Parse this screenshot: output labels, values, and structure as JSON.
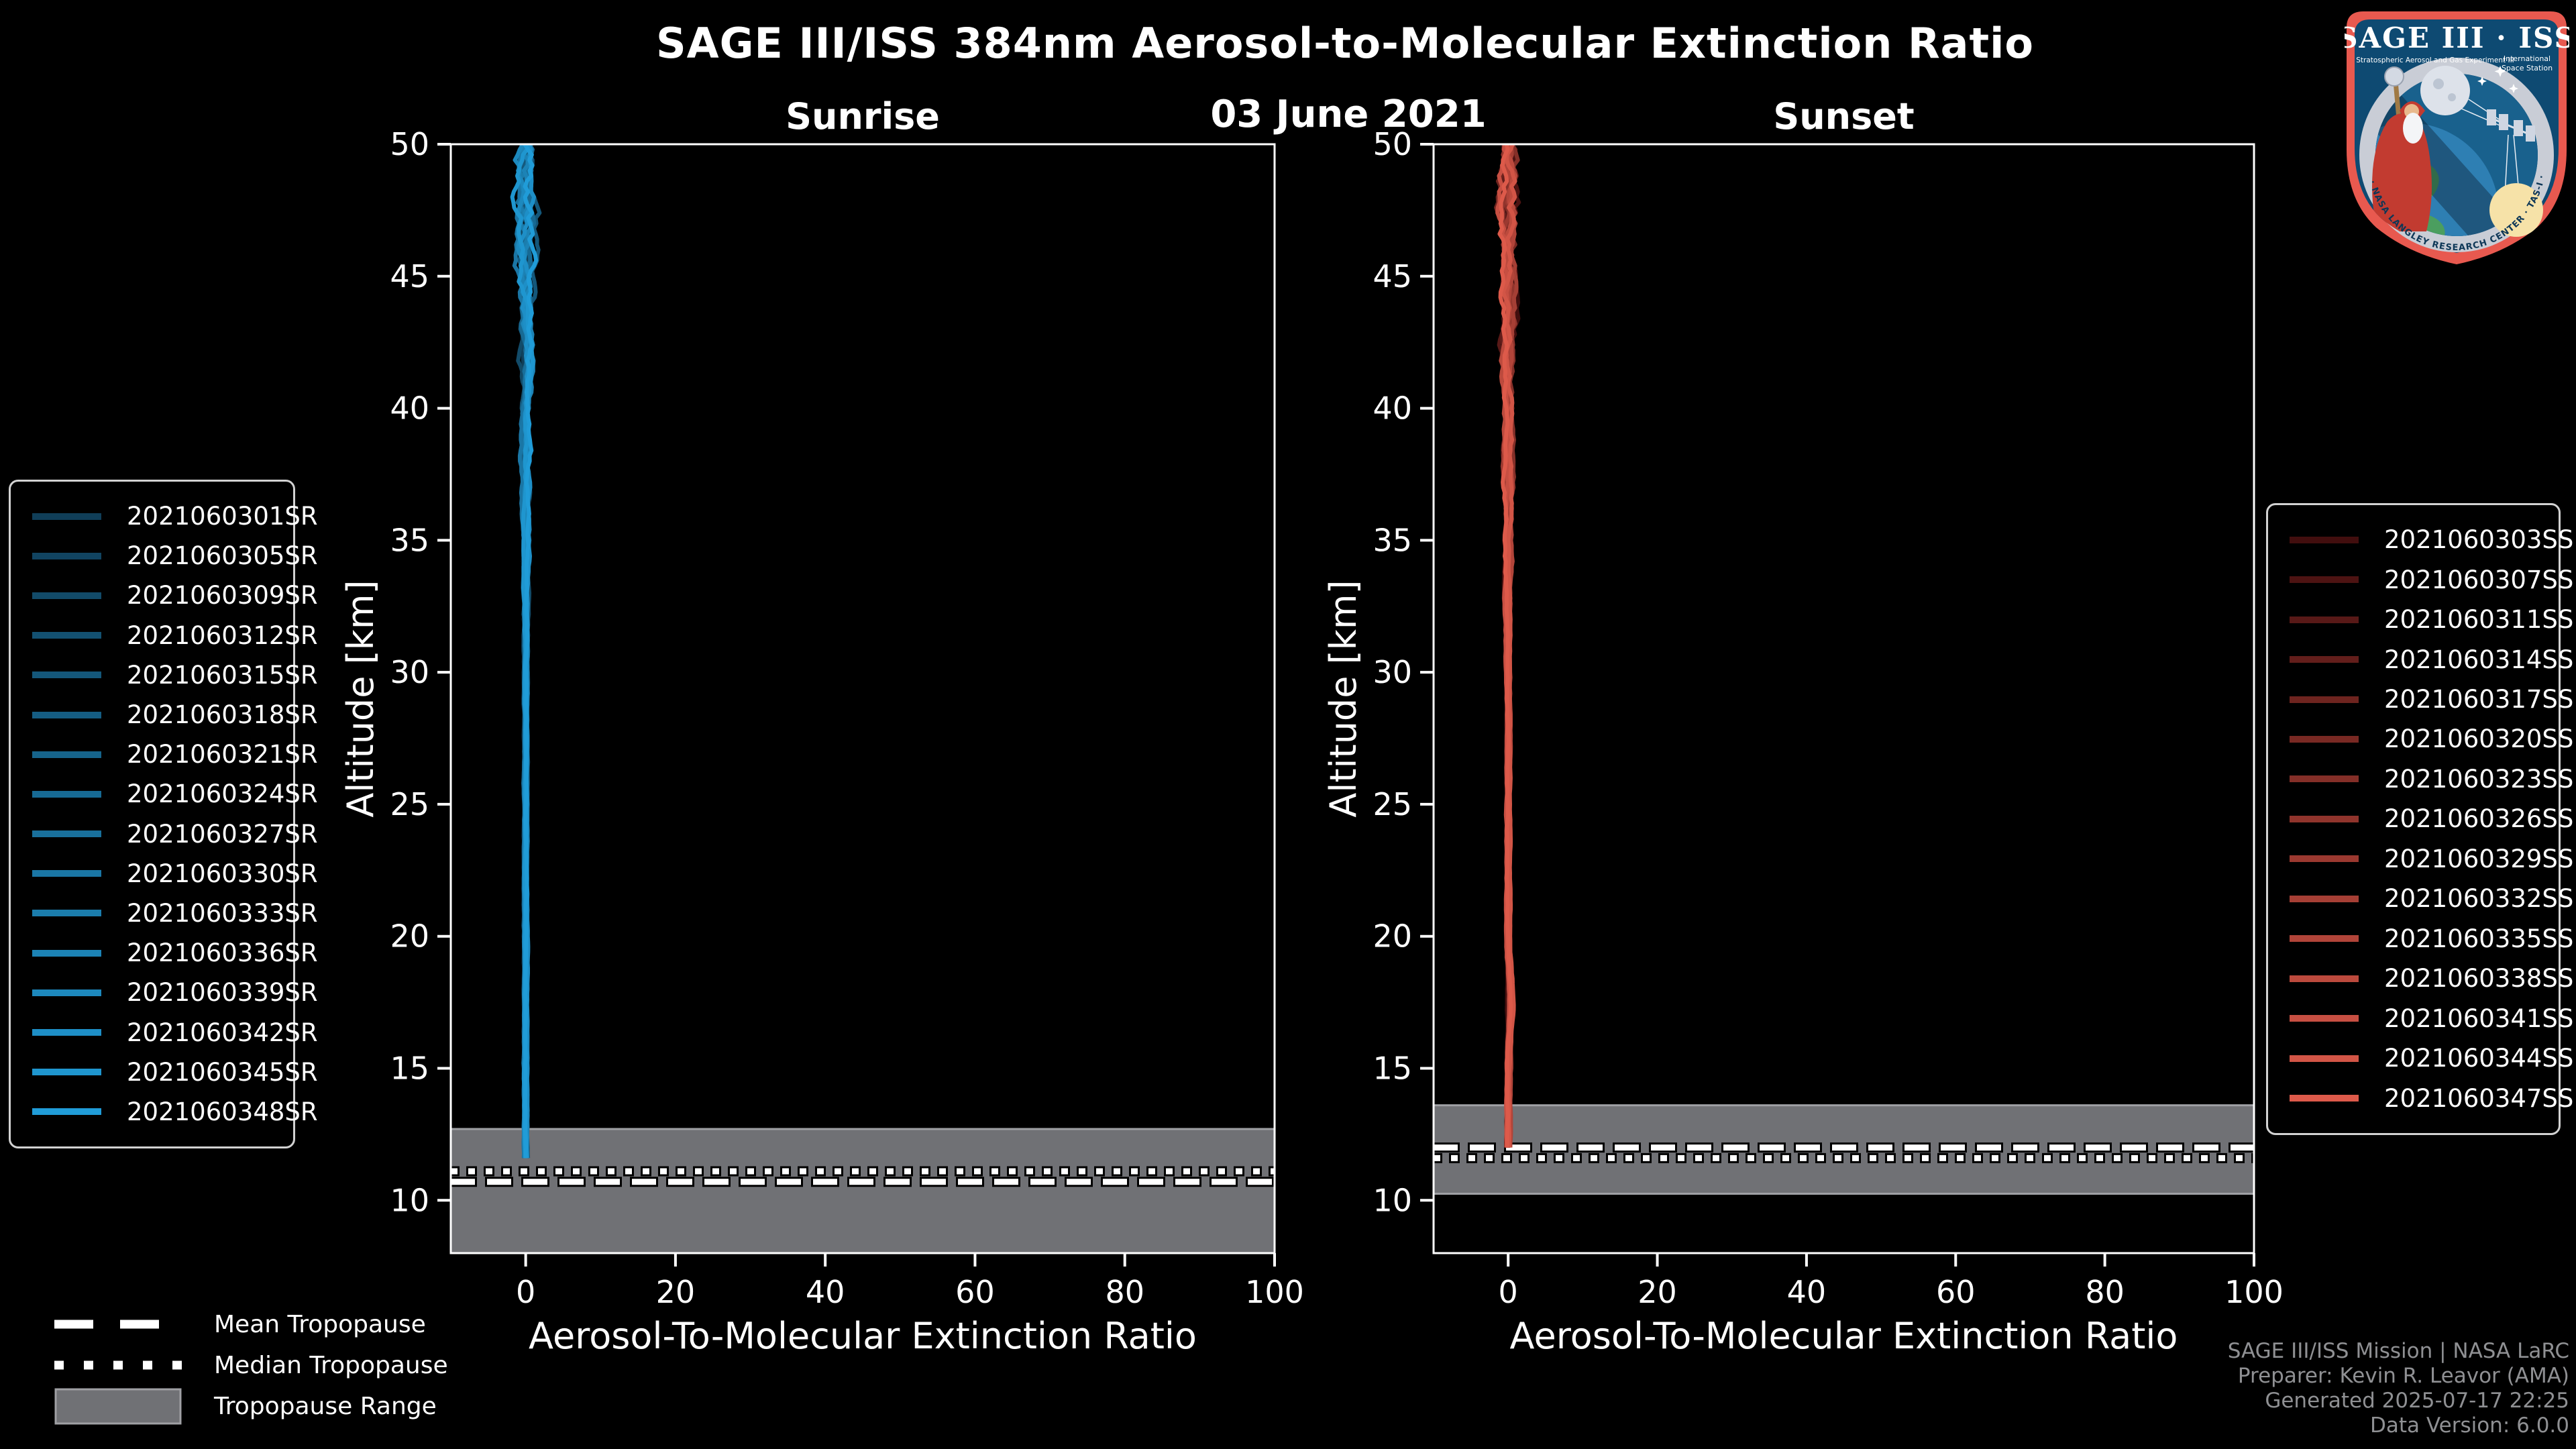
{
  "header": {
    "title": "SAGE III/ISS 384nm Aerosol-to-Molecular Extinction Ratio",
    "date": "03 June 2021"
  },
  "footer": {
    "lines": [
      "SAGE III/ISS Mission | NASA LaRC",
      "Preparer: Kevin R. Leavor (AMA)",
      "Generated 2025-07-17 22:25",
      "Data Version: 6.0.0"
    ]
  },
  "colors": {
    "background": "#000000",
    "axis": "#ffffff",
    "band": "#707175",
    "band_edge": "#9fa0a4",
    "tropopause_line": "#ffffff",
    "tropopause_outline": "#000000",
    "footer_text": "#8f9093",
    "legend_border": "#d2d2d2"
  },
  "tropopause_legend": {
    "items": [
      {
        "label": "Mean Tropopause",
        "style": "dashed"
      },
      {
        "label": "Median Tropopause",
        "style": "dotted"
      },
      {
        "label": "Tropopause Range",
        "style": "band"
      }
    ]
  },
  "logo": {
    "title": "SAGE III · ISS",
    "subtitle_left": "Stratospheric Aerosol and Gas Experiment III",
    "subtitle_right_line1": "International",
    "subtitle_right_line2": "Space Station",
    "ring_text": "BALL · NASA LANGLEY RESEARCH CENTER · TAS-I · ESA"
  },
  "chart_data": {
    "type": "line",
    "title": "SAGE III/ISS 384nm Aerosol-to-Molecular Extinction Ratio",
    "subtitle": "03 June 2021",
    "grid": false,
    "panels": [
      {
        "id": "sunrise",
        "title": "Sunrise",
        "xlabel": "Aerosol-To-Molecular Extinction Ratio",
        "ylabel": "Altitude [km]",
        "xlim": [
          -10,
          100
        ],
        "ylim": [
          8,
          50
        ],
        "xticks": [
          0,
          20,
          40,
          60,
          80,
          100
        ],
        "yticks": [
          10,
          15,
          20,
          25,
          30,
          35,
          40,
          45,
          50
        ],
        "legend_position": "outside-left",
        "tropopause": {
          "mean_km": 10.7,
          "median_km": 11.1,
          "range_top_km": 12.7,
          "range_bottom_km": 8.0
        },
        "profile": {
          "x_center": 0,
          "top_km": 50,
          "bottom_km": 11.4,
          "description": "16 overlapping near-vertical profiles clustered at extinction ratio ~0 from ~11.4 km to 50 km"
        },
        "series": [
          {
            "name": "2021060301SR",
            "color": "#103e58"
          },
          {
            "name": "2021060305SR",
            "color": "#114461"
          },
          {
            "name": "2021060309SR",
            "color": "#124b69"
          },
          {
            "name": "2021060312SR",
            "color": "#135172"
          },
          {
            "name": "2021060315SR",
            "color": "#14577a"
          },
          {
            "name": "2021060318SR",
            "color": "#155d83"
          },
          {
            "name": "2021060321SR",
            "color": "#16648b"
          },
          {
            "name": "2021060324SR",
            "color": "#176a94"
          },
          {
            "name": "2021060327SR",
            "color": "#19709c"
          },
          {
            "name": "2021060330SR",
            "color": "#1a76a5"
          },
          {
            "name": "2021060333SR",
            "color": "#1b7dad"
          },
          {
            "name": "2021060336SR",
            "color": "#1c83b6"
          },
          {
            "name": "2021060339SR",
            "color": "#1d89be"
          },
          {
            "name": "2021060342SR",
            "color": "#1e8fc7"
          },
          {
            "name": "2021060345SR",
            "color": "#1f96cf"
          },
          {
            "name": "2021060348SR",
            "color": "#209cd8"
          }
        ]
      },
      {
        "id": "sunset",
        "title": "Sunset",
        "xlabel": "Aerosol-To-Molecular Extinction Ratio",
        "ylabel": "Altitude [km]",
        "xlim": [
          -10,
          100
        ],
        "ylim": [
          8,
          50
        ],
        "xticks": [
          0,
          20,
          40,
          60,
          80,
          100
        ],
        "yticks": [
          10,
          15,
          20,
          25,
          30,
          35,
          40,
          45,
          50
        ],
        "legend_position": "outside-right",
        "tropopause": {
          "mean_km": 12.0,
          "median_km": 11.6,
          "range_top_km": 13.6,
          "range_bottom_km": 10.25
        },
        "profile": {
          "x_center": 0,
          "top_km": 50,
          "bottom_km": 11.85,
          "bump": {
            "alt_km": 17.5,
            "width_km": 1.6,
            "amp": 0.5
          },
          "description": "15 overlapping near-vertical profiles clustered at extinction ratio ~0 from ~11.9 km to 50 km"
        },
        "series": [
          {
            "name": "2021060303SS",
            "color": "#420e0e"
          },
          {
            "name": "2021060307SS",
            "color": "#4d1312"
          },
          {
            "name": "2021060311SS",
            "color": "#581917"
          },
          {
            "name": "2021060314SS",
            "color": "#631e1b"
          },
          {
            "name": "2021060317SS",
            "color": "#6e241f"
          },
          {
            "name": "2021060320SS",
            "color": "#792923"
          },
          {
            "name": "2021060323SS",
            "color": "#842f28"
          },
          {
            "name": "2021060326SS",
            "color": "#90342c"
          },
          {
            "name": "2021060329SS",
            "color": "#9b3930"
          },
          {
            "name": "2021060332SS",
            "color": "#a63f35"
          },
          {
            "name": "2021060335SS",
            "color": "#b14439"
          },
          {
            "name": "2021060338SS",
            "color": "#bc4a3d"
          },
          {
            "name": "2021060341SS",
            "color": "#c74f42"
          },
          {
            "name": "2021060344SS",
            "color": "#d25546"
          },
          {
            "name": "2021060347SS",
            "color": "#dd5a4a"
          }
        ]
      }
    ]
  }
}
